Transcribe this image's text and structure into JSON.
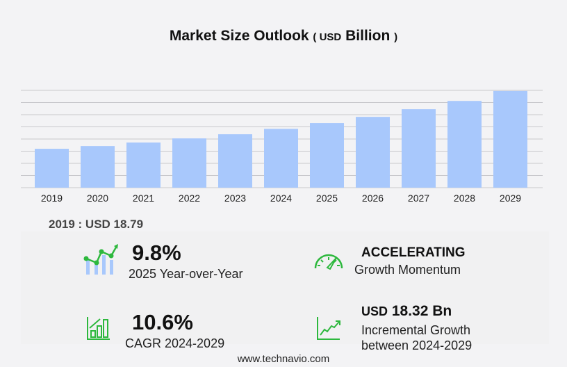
{
  "chart_data": {
    "type": "bar",
    "title": "Market Size Outlook",
    "unit_prefix": "USD",
    "unit": "Billion",
    "categories": [
      "2019",
      "2020",
      "2021",
      "2022",
      "2023",
      "2024",
      "2025",
      "2026",
      "2027",
      "2028",
      "2029"
    ],
    "values": [
      18.79,
      20.1,
      21.8,
      23.8,
      25.8,
      28.4,
      31.2,
      34.2,
      37.9,
      41.9,
      46.7
    ],
    "ylim": [
      0,
      47
    ],
    "grid": true,
    "bar_color": "#a8c8fc"
  },
  "base_label": "2019 : USD  18.79",
  "stats": {
    "yoy_value": "9.8%",
    "yoy_label": "2025 Year-over-Year",
    "momentum_value": "ACCELERATING",
    "momentum_label": "Growth Momentum",
    "cagr_value": "10.6%",
    "cagr_label": "CAGR 2024-2029",
    "incr_prefix": "USD",
    "incr_value": "18.32 Bn",
    "incr_label1": "Incremental Growth",
    "incr_label2": "between 2024-2029"
  },
  "accent_color": "#2db83d",
  "footer": "www.technavio.com"
}
